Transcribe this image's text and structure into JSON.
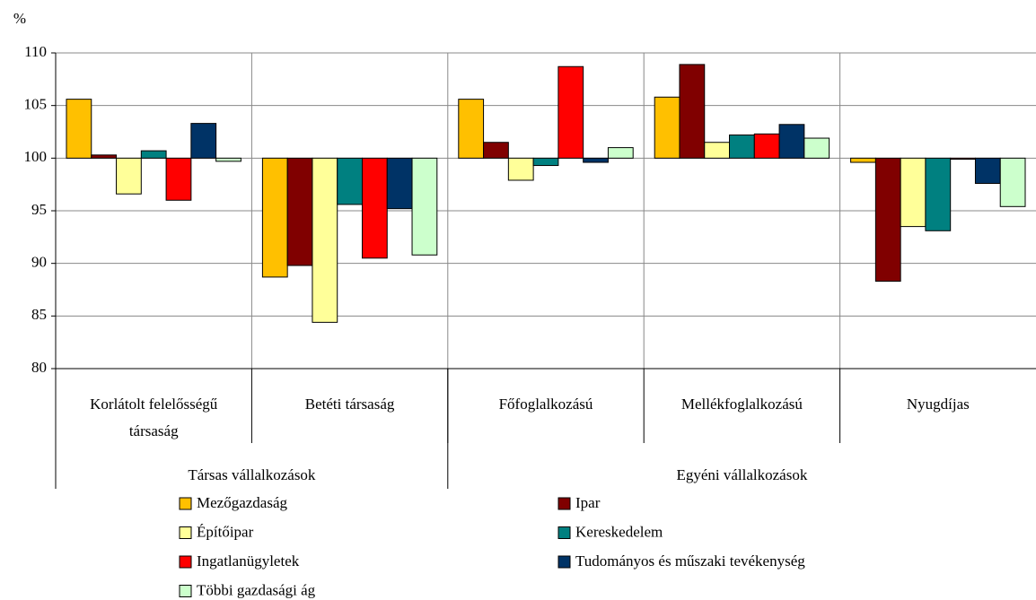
{
  "chart_data": {
    "type": "bar",
    "y_unit": "%",
    "categories": [
      "Korlátolt felelősségű társaság",
      "Betéti társaság",
      "Főfoglalkozású",
      "Mellékfoglalkozású",
      "Nyugdíjas"
    ],
    "category_groups": [
      {
        "label": "Társas vállalkozások",
        "count": 2
      },
      {
        "label": "Egyéni vállalkozások",
        "count": 3
      }
    ],
    "baseline": 100,
    "series": [
      {
        "name": "Mezőgazdaság",
        "color": "#ffc000",
        "values": [
          105.6,
          88.7,
          105.6,
          105.8,
          99.6
        ]
      },
      {
        "name": "Ipar",
        "color": "#800000",
        "values": [
          100.3,
          89.8,
          101.5,
          108.9,
          88.3
        ]
      },
      {
        "name": "Építőipar",
        "color": "#ffff99",
        "values": [
          96.6,
          84.4,
          97.9,
          101.5,
          93.5
        ]
      },
      {
        "name": "Kereskedelem",
        "color": "#008080",
        "values": [
          100.7,
          95.6,
          99.3,
          102.2,
          93.1
        ]
      },
      {
        "name": "Ingatlanügyletek",
        "color": "#ff0000",
        "values": [
          96.0,
          90.5,
          108.7,
          102.3,
          99.9
        ]
      },
      {
        "name": "Tudományos és műszaki tevékenység",
        "color": "#003366",
        "values": [
          103.3,
          95.2,
          99.6,
          103.2,
          97.6
        ]
      },
      {
        "name": "Többi gazdasági ág",
        "color": "#ccffcc",
        "values": [
          99.7,
          90.8,
          101.0,
          101.9,
          95.4
        ]
      }
    ],
    "ylim": [
      80,
      110
    ],
    "yticks": [
      80,
      85,
      90,
      95,
      100,
      105,
      110
    ],
    "grid": true
  }
}
